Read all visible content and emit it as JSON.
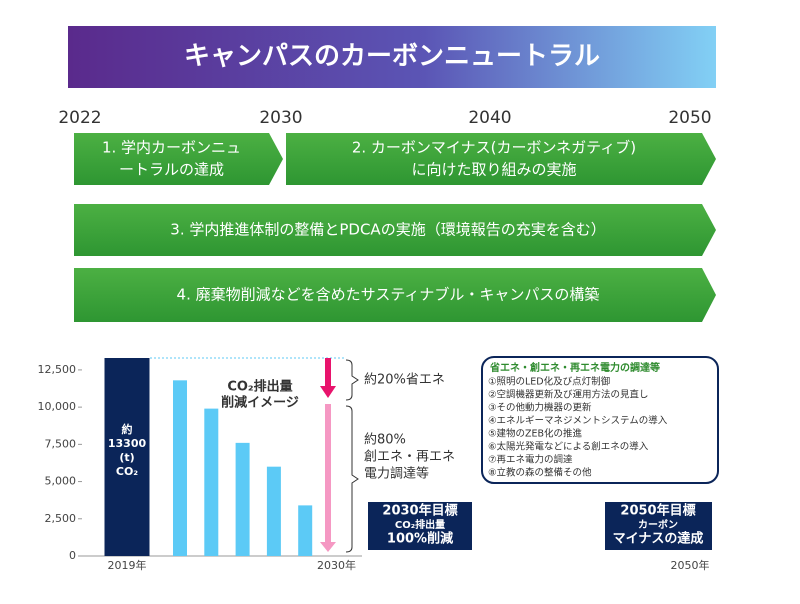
{
  "title": "キャンパスのカーボンニュートラル",
  "timeline": {
    "years": [
      "2022",
      "2030",
      "2040",
      "2050"
    ],
    "arrows": [
      {
        "lines": [
          "1. 学内カーボンニュ",
          "ートラルの達成"
        ]
      },
      {
        "lines": [
          "2. カーボンマイナス(カーボンネガティブ)",
          "に向けた取り組みの実施"
        ]
      },
      {
        "lines": [
          "3. 学内推進体制の整備とPDCAの実施（環境報告の充実を含む）"
        ]
      },
      {
        "lines": [
          "4. 廃棄物削減などを含めたサスティナブル・キャンパスの構築"
        ]
      }
    ]
  },
  "chart_data": {
    "type": "bar",
    "categories": [
      "2019年",
      null,
      null,
      null,
      null,
      null,
      "2030年"
    ],
    "values": [
      13300,
      11800,
      9900,
      7600,
      6000,
      3400,
      null
    ],
    "colors": [
      "#0b2559",
      "#5ccaf6",
      "#5ccaf6",
      "#5ccaf6",
      "#5ccaf6",
      "#5ccaf6",
      "#5ccaf6"
    ],
    "first_bar_label": {
      "prefix": "約",
      "unit": "(t)",
      "gas": "CO₂"
    },
    "ylim": [
      0,
      13300
    ],
    "yticks": [
      0,
      {
        "value": 2500,
        "label": "2,500"
      },
      {
        "value": 5000,
        "label": "5,000"
      },
      {
        "value": 7500,
        "label": "7,500"
      },
      {
        "value": 10000,
        "label": "10,000"
      },
      {
        "value": 12500,
        "label": "12,500"
      }
    ],
    "annotation": [
      "CO₂排出量",
      "削減イメージ"
    ],
    "reduction_labels": [
      [
        "約20%省エネ"
      ],
      [
        "約80%",
        "創エネ・再エネ",
        "電力調達等"
      ]
    ],
    "end_label": "2050年"
  },
  "measures": {
    "title": "省エネ・創エネ・再エネ電力の調達等",
    "items": [
      "①照明のLED化及び点灯制御",
      "②空調機器更新及び運用方法の見直し",
      "③その他動力機器の更新",
      "④エネルギーマネジメントシステムの導入",
      "⑤建物のZEB化の推進",
      "⑥太陽光発電などによる創エネの導入",
      "⑦再エネ電力の調達",
      "⑧立教の森の整備その他"
    ]
  },
  "goals": [
    [
      "2030年目標",
      "CO₂排出量",
      "100%削減"
    ],
    [
      "2050年目標",
      "カーボン",
      "マイナスの達成"
    ]
  ]
}
